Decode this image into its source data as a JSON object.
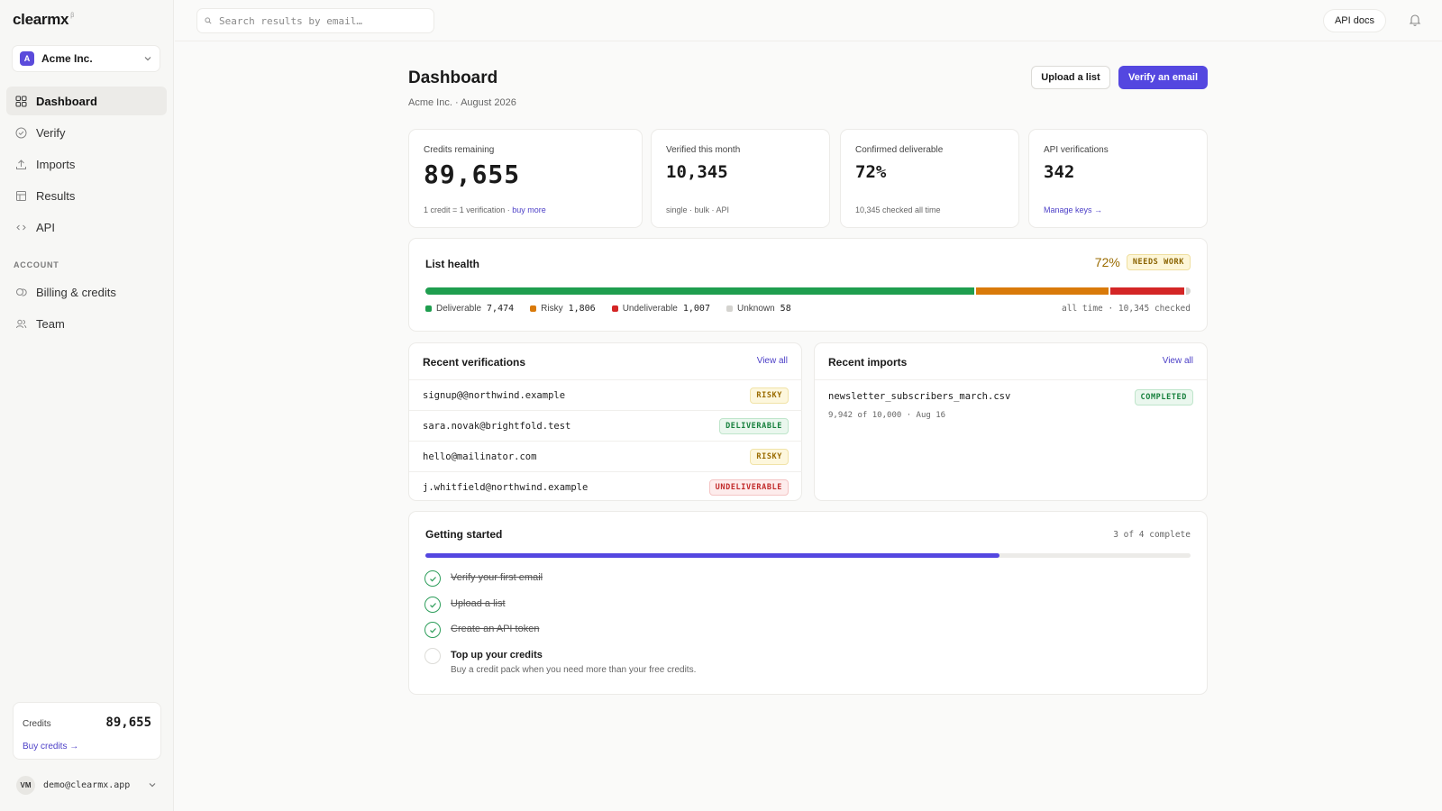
{
  "app": {
    "logo": "clearmx",
    "logo_sup": "β"
  },
  "org": {
    "badge": "A",
    "name": "Acme Inc."
  },
  "nav": {
    "items": [
      {
        "label": "Dashboard",
        "icon": "grid-icon",
        "active": true
      },
      {
        "label": "Verify",
        "icon": "check-circle-icon"
      },
      {
        "label": "Imports",
        "icon": "upload-icon"
      },
      {
        "label": "Results",
        "icon": "table-icon"
      },
      {
        "label": "API",
        "icon": "code-icon"
      }
    ],
    "account_header": "ACCOUNT",
    "account_items": [
      {
        "label": "Billing & credits",
        "icon": "coins-icon"
      },
      {
        "label": "Team",
        "icon": "users-icon"
      }
    ]
  },
  "sidebar_credits": {
    "label": "Credits",
    "value": "89,655",
    "link": "Buy credits →"
  },
  "user": {
    "initials": "VM",
    "email": "demo@clearmx.app"
  },
  "topbar": {
    "search_placeholder": "Search results by email…",
    "api_docs": "API docs"
  },
  "header": {
    "title": "Dashboard",
    "subtitle": "Acme Inc. · August 2026",
    "upload_label": "Upload a list",
    "verify_label": "Verify an email"
  },
  "stats": [
    {
      "label": "Credits remaining",
      "value": "89,655",
      "foot": "1 credit = 1 verification · ",
      "foot_link": "buy more"
    },
    {
      "label": "Verified this month",
      "value": "10,345",
      "foot": "single · bulk · API"
    },
    {
      "label": "Confirmed deliverable",
      "value": "72%",
      "foot": "10,345 checked all time"
    },
    {
      "label": "API verifications",
      "value": "342",
      "foot_link": "Manage keys →"
    }
  ],
  "list_health": {
    "title": "List health",
    "percent": "72%",
    "badge": "NEEDS WORK",
    "segments": [
      {
        "name": "Deliverable",
        "value": 7474,
        "display": "7,474",
        "color": "#1f9e4f"
      },
      {
        "name": "Risky",
        "value": 1806,
        "display": "1,806",
        "color": "#d97a0a"
      },
      {
        "name": "Undeliverable",
        "value": 1007,
        "display": "1,007",
        "color": "#d42626"
      },
      {
        "name": "Unknown",
        "value": 58,
        "display": "58",
        "color": "#d4d3cf"
      }
    ],
    "summary": "all time · 10,345 checked"
  },
  "recent_verifications": {
    "title": "Recent verifications",
    "view_all": "View all",
    "rows": [
      {
        "email": "signup@@northwind.example",
        "status": "RISKY",
        "kind": "risky"
      },
      {
        "email": "sara.novak@brightfold.test",
        "status": "DELIVERABLE",
        "kind": "deliv"
      },
      {
        "email": "hello@mailinator.com",
        "status": "RISKY",
        "kind": "risky"
      },
      {
        "email": "j.whitfield@northwind.example",
        "status": "UNDELIVERABLE",
        "kind": "undel"
      }
    ]
  },
  "recent_imports": {
    "title": "Recent imports",
    "view_all": "View all",
    "rows": [
      {
        "file": "newsletter_subscribers_march.csv",
        "meta": "9,942 of 10,000 · Aug 16",
        "status": "COMPLETED"
      }
    ]
  },
  "getting_started": {
    "title": "Getting started",
    "progress_text": "3 of 4 complete",
    "progress": 0.75,
    "tasks": [
      {
        "label": "Verify your first email",
        "done": true
      },
      {
        "label": "Upload a list",
        "done": true
      },
      {
        "label": "Create an API token",
        "done": true
      },
      {
        "label": "Top up your credits",
        "done": false,
        "desc": "Buy a credit pack when you need more than your free credits."
      }
    ]
  },
  "colors": {
    "accent": "#5447e0",
    "link": "#4c3fc7",
    "deliverable": "#1f9e4f",
    "risky": "#d97a0a",
    "undeliverable": "#d42626",
    "unknown": "#d4d3cf"
  }
}
